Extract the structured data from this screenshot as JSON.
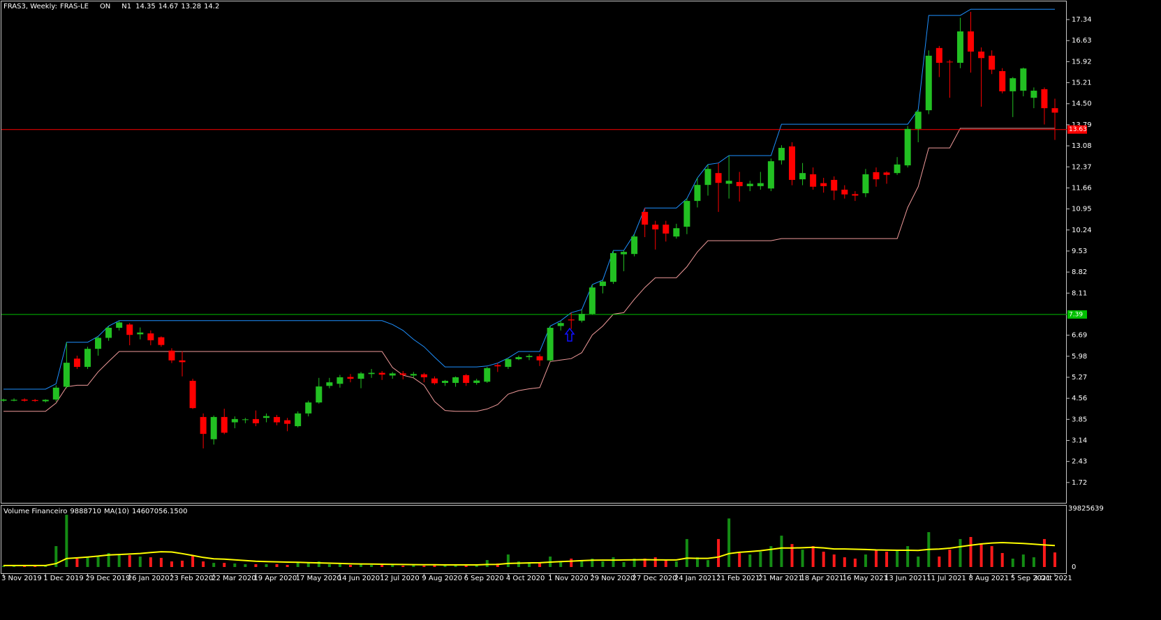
{
  "chart_data": [
    {
      "type": "candlestick",
      "title": "FRAS3, Weekly:",
      "symbol": "FRAS-LE",
      "status": "ON",
      "indicator": "N1",
      "up_color": "#22c022",
      "down_color": "#ff0000",
      "open": [
        4.48,
        4.48,
        4.52,
        4.5,
        4.46,
        4.52,
        4.95,
        5.9,
        5.62,
        6.23,
        6.6,
        6.94,
        7.05,
        6.72,
        6.75,
        6.62,
        6.17,
        5.84,
        5.15,
        3.93,
        3.18,
        3.93,
        3.75,
        3.83,
        3.86,
        3.9,
        3.93,
        3.82,
        3.62,
        4.05,
        4.42,
        4.98,
        5.05,
        5.28,
        5.22,
        5.38,
        5.42,
        5.33,
        5.4,
        5.33,
        5.37,
        5.23,
        5.08,
        5.08,
        5.34,
        5.08,
        5.12,
        5.68,
        5.62,
        5.88,
        5.95,
        5.98,
        5.84,
        7.0,
        7.22,
        7.18,
        7.41,
        8.35,
        8.49,
        9.42,
        9.43,
        10.85,
        10.42,
        10.42,
        10.02,
        10.35,
        11.22,
        11.76,
        12.16,
        11.8,
        11.86,
        11.72,
        11.72,
        11.64,
        12.59,
        13.06,
        11.95,
        12.12,
        11.82,
        11.93,
        11.6,
        11.45,
        11.48,
        12.19,
        12.18,
        12.16,
        12.42,
        13.65,
        14.28,
        16.38,
        15.92,
        15.88,
        16.94,
        16.26,
        16.12,
        15.6,
        14.92,
        14.94,
        14.7,
        14.99,
        14.35
      ],
      "high": [
        4.55,
        4.56,
        4.56,
        4.54,
        4.53,
        5.0,
        6.45,
        6.0,
        6.3,
        6.65,
        7.0,
        7.18,
        7.1,
        6.95,
        6.85,
        6.65,
        6.25,
        6.15,
        5.22,
        4.05,
        3.98,
        4.21,
        3.95,
        3.9,
        4.15,
        4.05,
        4.0,
        3.9,
        4.12,
        4.48,
        5.25,
        5.25,
        5.35,
        5.38,
        5.45,
        5.55,
        5.48,
        5.45,
        5.48,
        5.45,
        5.42,
        5.3,
        5.18,
        5.3,
        5.38,
        5.22,
        5.62,
        5.75,
        5.92,
        6.0,
        6.05,
        6.05,
        7.0,
        7.18,
        7.45,
        7.55,
        8.4,
        8.55,
        9.55,
        9.55,
        10.1,
        10.98,
        10.55,
        10.55,
        10.45,
        11.3,
        12.0,
        12.45,
        12.5,
        12.75,
        12.2,
        11.9,
        12.2,
        12.65,
        13.1,
        13.2,
        12.5,
        12.35,
        12.0,
        12.05,
        11.75,
        11.55,
        12.3,
        12.35,
        12.22,
        12.7,
        13.75,
        14.3,
        16.3,
        16.45,
        15.98,
        17.4,
        17.6,
        16.4,
        16.3,
        15.7,
        15.4,
        15.72,
        15.05,
        15.05,
        14.67
      ],
      "low": [
        4.45,
        4.46,
        4.45,
        4.44,
        4.42,
        4.45,
        4.9,
        5.55,
        5.55,
        6.0,
        6.5,
        6.85,
        6.35,
        6.55,
        6.35,
        6.3,
        5.75,
        5.3,
        4.2,
        2.87,
        3.0,
        3.35,
        3.55,
        3.72,
        3.62,
        3.75,
        3.65,
        3.45,
        3.58,
        3.95,
        4.38,
        4.9,
        4.92,
        5.1,
        4.9,
        5.25,
        5.18,
        5.22,
        5.2,
        5.25,
        5.1,
        5.02,
        4.98,
        4.95,
        4.98,
        5.02,
        5.08,
        5.45,
        5.55,
        5.85,
        5.85,
        5.65,
        5.8,
        6.85,
        6.9,
        7.12,
        7.38,
        8.1,
        8.42,
        8.85,
        9.35,
        10.0,
        9.58,
        9.85,
        9.95,
        10.1,
        11.0,
        11.4,
        10.85,
        11.3,
        11.2,
        11.55,
        11.6,
        11.55,
        12.45,
        11.75,
        11.75,
        11.6,
        11.5,
        11.25,
        11.3,
        11.22,
        11.35,
        11.7,
        11.8,
        12.1,
        12.35,
        13.2,
        14.15,
        15.4,
        14.7,
        15.7,
        15.55,
        14.4,
        15.5,
        14.85,
        14.05,
        14.75,
        14.35,
        13.8,
        13.28
      ],
      "close": [
        4.52,
        4.51,
        4.48,
        4.47,
        4.51,
        4.92,
        5.76,
        5.62,
        6.23,
        6.6,
        6.94,
        7.12,
        6.7,
        6.78,
        6.52,
        6.36,
        5.84,
        5.78,
        4.23,
        3.36,
        3.93,
        3.4,
        3.86,
        3.85,
        3.72,
        3.96,
        3.75,
        3.7,
        4.05,
        4.42,
        4.96,
        5.1,
        5.27,
        5.22,
        5.4,
        5.42,
        5.36,
        5.4,
        5.35,
        5.38,
        5.27,
        5.07,
        5.15,
        5.27,
        5.08,
        5.16,
        5.58,
        5.64,
        5.88,
        5.95,
        5.99,
        5.84,
        6.94,
        7.1,
        7.19,
        7.41,
        8.3,
        8.5,
        9.46,
        9.5,
        10.02,
        10.42,
        10.26,
        10.12,
        10.3,
        11.22,
        11.76,
        12.3,
        11.83,
        11.9,
        11.72,
        11.8,
        11.82,
        12.56,
        13.01,
        11.93,
        12.16,
        11.7,
        11.72,
        11.57,
        11.44,
        11.4,
        12.12,
        11.95,
        12.1,
        12.45,
        13.65,
        14.23,
        16.12,
        15.88,
        15.9,
        16.94,
        16.26,
        16.04,
        15.65,
        14.92,
        15.36,
        15.69,
        14.94,
        14.35,
        14.2
      ],
      "series": [
        {
          "color": "#1e90ff",
          "values": [
            4.87,
            4.87,
            4.87,
            4.87,
            4.87,
            5.05,
            6.45,
            6.45,
            6.45,
            6.65,
            7.0,
            7.18,
            7.18,
            7.18,
            7.18,
            7.18,
            7.18,
            7.18,
            7.18,
            7.18,
            7.18,
            7.18,
            7.18,
            7.18,
            7.18,
            7.18,
            7.18,
            7.18,
            7.18,
            7.18,
            7.18,
            7.18,
            7.18,
            7.18,
            7.18,
            7.18,
            7.18,
            7.05,
            6.85,
            6.55,
            6.3,
            5.95,
            5.62,
            5.62,
            5.62,
            5.62,
            5.65,
            5.75,
            5.92,
            6.14,
            6.14,
            6.14,
            7.0,
            7.18,
            7.45,
            7.55,
            8.4,
            8.55,
            9.55,
            9.55,
            10.1,
            10.98,
            10.98,
            10.98,
            10.98,
            11.3,
            12.0,
            12.45,
            12.5,
            12.75,
            12.75,
            12.75,
            12.75,
            12.75,
            13.81,
            13.81,
            13.81,
            13.81,
            13.81,
            13.81,
            13.81,
            13.81,
            13.81,
            13.81,
            13.81,
            13.81,
            13.81,
            14.3,
            17.48,
            17.48,
            17.48,
            17.48,
            17.69,
            17.69,
            17.69,
            17.69,
            17.69,
            17.69,
            17.69,
            17.69,
            17.69
          ]
        },
        {
          "color": "#f09a9a",
          "values": [
            4.12,
            4.12,
            4.12,
            4.12,
            4.12,
            4.4,
            4.95,
            5.0,
            5.0,
            5.45,
            5.8,
            6.14,
            6.14,
            6.14,
            6.14,
            6.14,
            6.14,
            6.14,
            6.14,
            6.14,
            6.14,
            6.14,
            6.14,
            6.14,
            6.14,
            6.14,
            6.14,
            6.14,
            6.14,
            6.14,
            6.14,
            6.14,
            6.14,
            6.14,
            6.14,
            6.14,
            6.14,
            5.6,
            5.34,
            5.25,
            5.0,
            4.45,
            4.15,
            4.12,
            4.12,
            4.12,
            4.2,
            4.35,
            4.7,
            4.82,
            4.88,
            4.92,
            5.8,
            5.85,
            5.9,
            6.1,
            6.7,
            7.0,
            7.4,
            7.45,
            7.9,
            8.3,
            8.63,
            8.63,
            8.63,
            9.0,
            9.5,
            9.88,
            9.88,
            9.88,
            9.88,
            9.88,
            9.88,
            9.88,
            9.95,
            9.95,
            9.95,
            9.95,
            9.95,
            9.95,
            9.95,
            9.95,
            9.95,
            9.95,
            9.95,
            9.95,
            11.0,
            11.7,
            13.01,
            13.01,
            13.01,
            13.67,
            13.67,
            13.67,
            13.67,
            13.67,
            13.67,
            13.67,
            13.67,
            13.67,
            13.67
          ]
        }
      ],
      "hlines": [
        {
          "value": 13.63,
          "color": "#ff0000"
        },
        {
          "value": 7.39,
          "color": "#00c000"
        }
      ],
      "ylim": [
        1.01,
        18.0
      ],
      "yticks": [
        17.34,
        16.63,
        15.92,
        15.21,
        {
          "value": 14.5,
          "label": "14.50"
        },
        13.79,
        13.08,
        12.37,
        11.66,
        10.95,
        10.24,
        9.53,
        8.82,
        8.11,
        6.69,
        5.98,
        5.27,
        4.56,
        3.85,
        3.14,
        2.43,
        1.72
      ],
      "xticks": [
        {
          "value": 0,
          "label": "3 Nov 2019"
        },
        {
          "value": 4,
          "label": "1 Dec 2019"
        },
        {
          "value": 8,
          "label": "29 Dec 2019"
        },
        {
          "value": 12,
          "label": "26 Jan 2020"
        },
        {
          "value": 16,
          "label": "23 Feb 2020"
        },
        {
          "value": 20,
          "label": "22 Mar 2020"
        },
        {
          "value": 24,
          "label": "19 Apr 2020"
        },
        {
          "value": 28,
          "label": "17 May 2020"
        },
        {
          "value": 32,
          "label": "14 Jun 2020"
        },
        {
          "value": 36,
          "label": "12 Jul 2020"
        },
        {
          "value": 40,
          "label": "9 Aug 2020"
        },
        {
          "value": 44,
          "label": "6 Sep 2020"
        },
        {
          "value": 48,
          "label": "4 Oct 2020"
        },
        {
          "value": 52,
          "label": "1 Nov 2020"
        },
        {
          "value": 56,
          "label": "29 Nov 2020"
        },
        {
          "value": 60,
          "label": "27 Dec 2020"
        },
        {
          "value": 64,
          "label": "24 Jan 2021"
        },
        {
          "value": 68,
          "label": "21 Feb 2021"
        },
        {
          "value": 72,
          "label": "21 Mar 2021"
        },
        {
          "value": 76,
          "label": "18 Apr 2021"
        },
        {
          "value": 80,
          "label": "16 May 2021"
        },
        {
          "value": 84,
          "label": "13 Jun 2021"
        },
        {
          "value": 88,
          "label": "11 Jul 2021"
        },
        {
          "value": 92,
          "label": "8 Aug 2021"
        },
        {
          "value": 96,
          "label": "5 Sep 2021"
        },
        {
          "value": 100,
          "label": "3 Oct 2021"
        }
      ]
    },
    {
      "type": "bar",
      "title": "Volume Financeiro",
      "ma_name": "MA(10)",
      "ma_current": {
        "value": 14607056.15,
        "label": "14607056.1500"
      },
      "up_color": "#148c14",
      "down_color": "#ff1a1a",
      "values": [
        900000,
        700000,
        800000,
        600000,
        900000,
        14200000,
        35500000,
        5700000,
        7100000,
        7100000,
        9500000,
        8500000,
        8000000,
        7100000,
        6600000,
        6200000,
        3800000,
        4300000,
        7600000,
        3800000,
        2800000,
        2800000,
        2400000,
        1900000,
        1900000,
        1900000,
        1900000,
        1400000,
        3300000,
        2800000,
        3800000,
        1900000,
        1900000,
        1400000,
        2400000,
        1400000,
        1400000,
        1400000,
        900000,
        1400000,
        900000,
        1400000,
        1400000,
        1900000,
        1400000,
        1400000,
        4700000,
        2400000,
        8500000,
        3800000,
        3300000,
        2800000,
        7100000,
        3800000,
        5700000,
        4700000,
        5700000,
        3800000,
        6600000,
        3300000,
        5700000,
        5700000,
        6600000,
        4700000,
        3800000,
        19000000,
        6600000,
        4700000,
        19000000,
        33000000,
        9500000,
        8500000,
        10400000,
        14200000,
        21300000,
        15600000,
        11800000,
        14200000,
        10400000,
        8500000,
        6600000,
        5700000,
        8500000,
        11800000,
        10400000,
        11400000,
        14200000,
        7100000,
        23700000,
        7100000,
        11800000,
        19000000,
        20400000,
        16100000,
        14200000,
        9500000,
        5700000,
        8500000,
        6600000,
        19000000,
        9888710
      ],
      "series": [
        {
          "color": "#ffff00",
          "values": [
            1000000,
            1000000,
            1000000,
            1000000,
            1000000,
            2300000,
            5800000,
            6200000,
            6800000,
            7400000,
            8200000,
            8500000,
            8800000,
            9200000,
            9800000,
            10400000,
            10200000,
            9100000,
            7800000,
            6500000,
            5600000,
            5300000,
            4900000,
            4400000,
            3900000,
            3700000,
            3500000,
            3300000,
            3200000,
            3000000,
            2800000,
            2600000,
            2400000,
            2200000,
            2100000,
            2000000,
            1900000,
            1800000,
            1700000,
            1600000,
            1500000,
            1500000,
            1400000,
            1400000,
            1400000,
            1400000,
            1700000,
            1800000,
            2400000,
            2600000,
            2800000,
            2900000,
            3300000,
            3700000,
            4000000,
            4300000,
            4600000,
            4700000,
            4700000,
            4800000,
            4900000,
            5000000,
            4900000,
            4800000,
            4800000,
            6000000,
            5900000,
            5900000,
            6800000,
            9100000,
            10000000,
            10500000,
            11100000,
            12000000,
            12900000,
            12900000,
            13100000,
            13400000,
            13000000,
            12300000,
            12300000,
            12100000,
            11900000,
            11600000,
            11500000,
            11400000,
            11400000,
            11300000,
            12000000,
            12200000,
            12800000,
            13800000,
            14800000,
            15700000,
            16300000,
            16600000,
            16300000,
            16000000,
            15500000,
            15000000,
            14607056.15
          ]
        }
      ],
      "ylim": [
        0,
        39825639
      ],
      "yticks": [
        0,
        39825639
      ]
    }
  ]
}
